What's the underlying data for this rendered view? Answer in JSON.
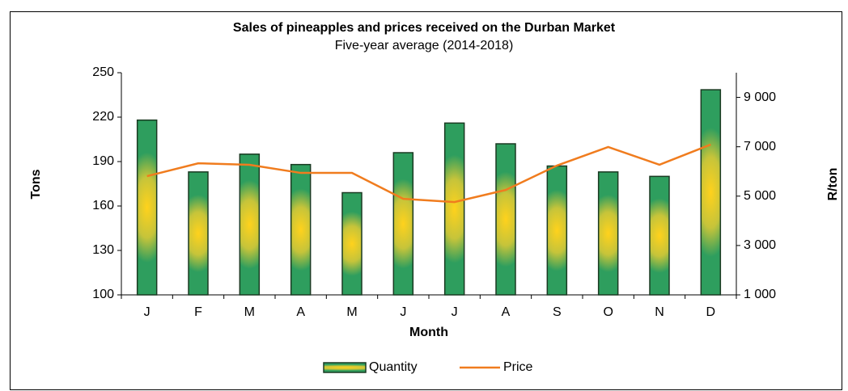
{
  "chart_data": {
    "type": "bar_line",
    "title": "Sales of pineapples and prices received on the Durban Market",
    "subtitle": "Five-year average (2014-2018)",
    "x_label": "Month",
    "y_label": "Tons",
    "y2_label": "R/ton",
    "categories": [
      "J",
      "F",
      "M",
      "A",
      "M",
      "J",
      "J",
      "A",
      "S",
      "O",
      "N",
      "D"
    ],
    "series": [
      {
        "name": "Quantity",
        "type": "bar",
        "color": "#2e9e5e",
        "values": [
          218,
          183,
          195,
          188,
          169,
          196,
          216,
          202,
          187,
          183,
          180,
          238.5
        ]
      },
      {
        "name": "Price",
        "type": "line",
        "axis": "y2",
        "color": "#f07c1e",
        "values": [
          5810,
          6330,
          6270,
          5940,
          5940,
          4890,
          4760,
          5250,
          6240,
          6990,
          6270,
          7090
        ]
      }
    ],
    "ylim": [
      100,
      250
    ],
    "yticks": [
      100,
      130,
      160,
      190,
      220,
      250
    ],
    "y2lim": [
      1000,
      10000
    ],
    "y2ticks": [
      {
        "value": 1000,
        "label": "1 000"
      },
      {
        "value": 3000,
        "label": "3 000"
      },
      {
        "value": 5000,
        "label": "5 000"
      },
      {
        "value": 7000,
        "label": "7 000"
      },
      {
        "value": 9000,
        "label": "9 000"
      }
    ],
    "legend": "bottom"
  }
}
